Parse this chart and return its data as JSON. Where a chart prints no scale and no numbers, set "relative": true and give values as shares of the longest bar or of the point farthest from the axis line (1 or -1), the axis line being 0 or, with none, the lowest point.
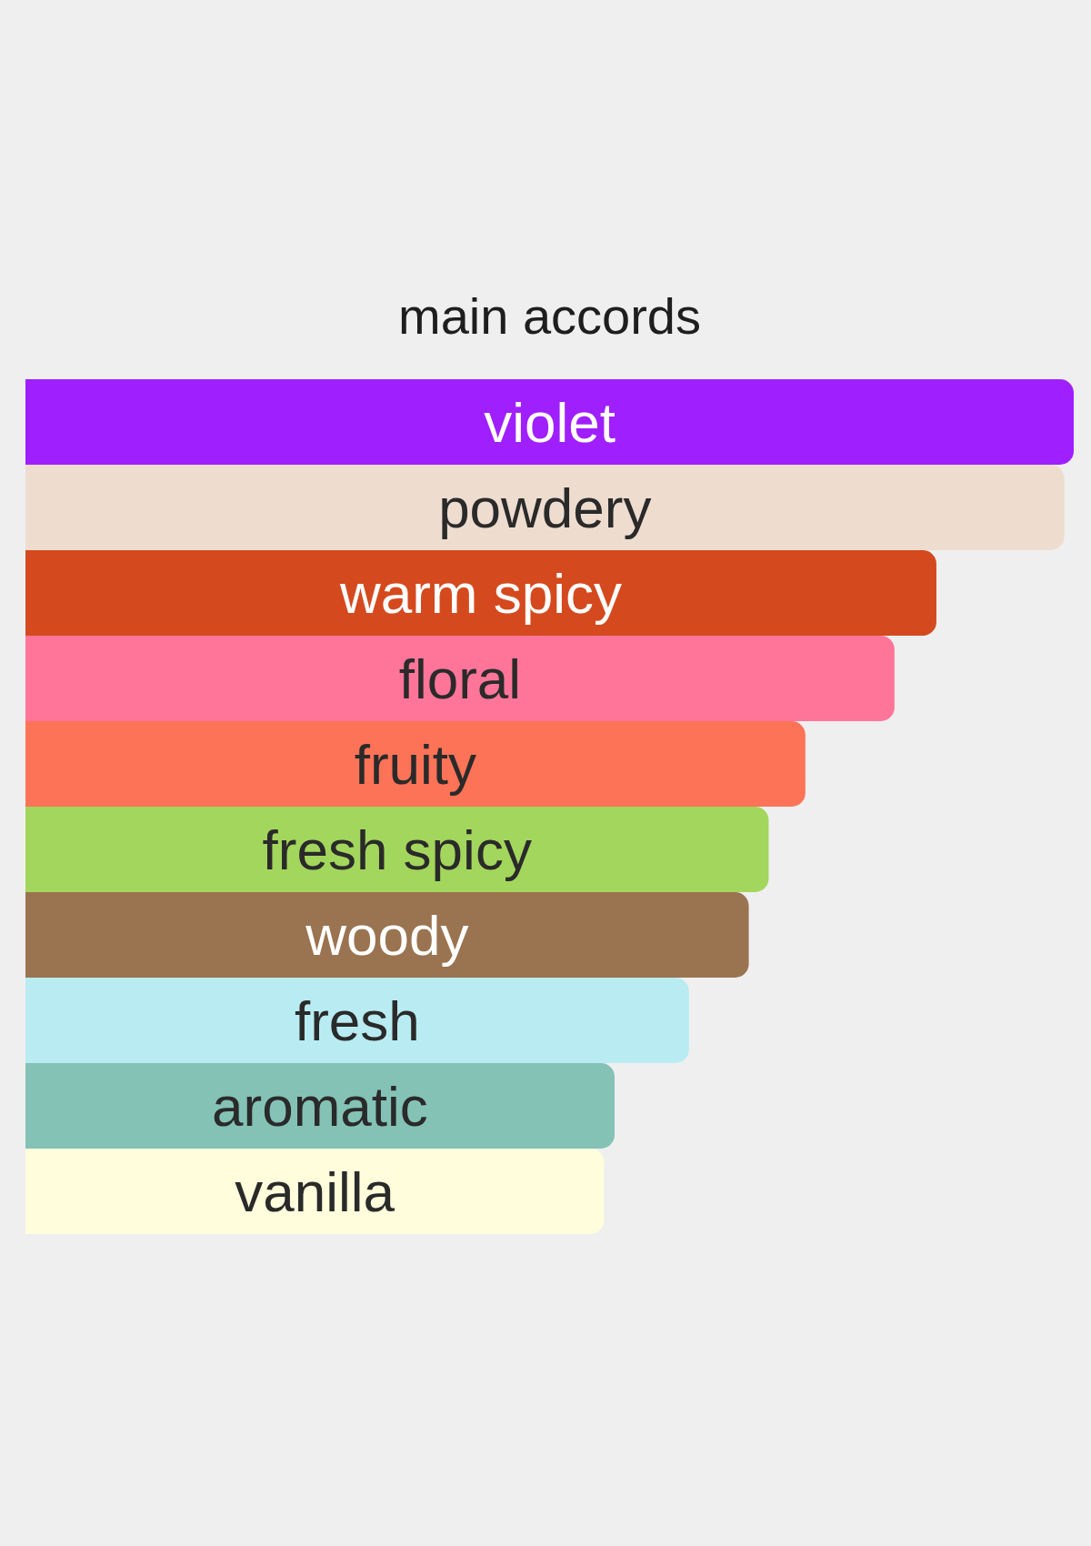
{
  "chart_data": {
    "type": "bar",
    "title": "main accords",
    "orientation": "horizontal",
    "relative": true,
    "categories": [
      "violet",
      "powdery",
      "warm spicy",
      "floral",
      "fruity",
      "fresh spicy",
      "woody",
      "fresh",
      "aromatic",
      "vanilla"
    ],
    "values": [
      1,
      0.991,
      0.869,
      0.829,
      0.744,
      0.709,
      0.69,
      0.633,
      0.562,
      0.552
    ],
    "colors": [
      "#a01ffe",
      "#eeddcf",
      "#d44a1e",
      "#ff7599",
      "#fd7357",
      "#a3d65c",
      "#9a7350",
      "#b9ebf2",
      "#84c2b6",
      "#fffddb"
    ]
  }
}
